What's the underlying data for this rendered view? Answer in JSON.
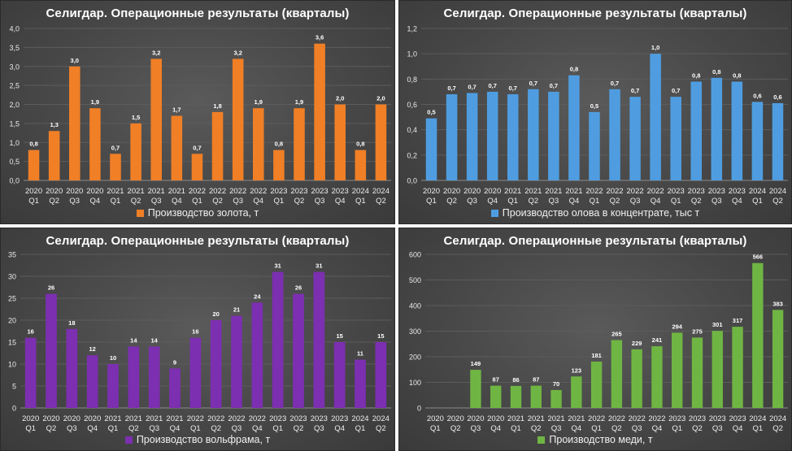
{
  "chart_data": [
    {
      "type": "bar",
      "title": "Селигдар. Операционные результаты (кварталы)",
      "categories": [
        [
          "2020",
          "Q1"
        ],
        [
          "2020",
          "Q2"
        ],
        [
          "2020",
          "Q3"
        ],
        [
          "2020",
          "Q4"
        ],
        [
          "2021",
          "Q1"
        ],
        [
          "2021",
          "Q2"
        ],
        [
          "2021",
          "Q3"
        ],
        [
          "2021",
          "Q4"
        ],
        [
          "2022",
          "Q1"
        ],
        [
          "2022",
          "Q2"
        ],
        [
          "2022",
          "Q3"
        ],
        [
          "2022",
          "Q4"
        ],
        [
          "2023",
          "Q1"
        ],
        [
          "2023",
          "Q2"
        ],
        [
          "2023",
          "Q3"
        ],
        [
          "2023",
          "Q4"
        ],
        [
          "2024",
          "Q1"
        ],
        [
          "2024",
          "Q2"
        ]
      ],
      "series": [
        {
          "name": "Производство золота, т",
          "values": [
            0.8,
            1.3,
            3.0,
            1.9,
            0.7,
            1.5,
            3.2,
            1.7,
            0.7,
            1.8,
            3.2,
            1.9,
            0.8,
            1.9,
            3.6,
            2.0,
            0.8,
            2.0
          ]
        }
      ],
      "data_labels": [
        "0,8",
        "1,3",
        "3,0",
        "1,9",
        "0,7",
        "1,5",
        "3,2",
        "1,7",
        "0,7",
        "1,8",
        "3,2",
        "1,9",
        "0,8",
        "1,9",
        "3,6",
        "2,0",
        "0,8",
        "2,0"
      ],
      "yticks": [
        "0,0",
        "0,5",
        "1,0",
        "1,5",
        "2,0",
        "2,5",
        "3,0",
        "3,5",
        "4,0"
      ],
      "ylim": [
        0,
        4.0
      ],
      "color": "#f07f26",
      "legend_position": "bottom"
    },
    {
      "type": "bar",
      "title": "Селигдар. Операционные результаты (кварталы)",
      "categories": [
        [
          "2020",
          "Q1"
        ],
        [
          "2020",
          "Q2"
        ],
        [
          "2020",
          "Q3"
        ],
        [
          "2020",
          "Q4"
        ],
        [
          "2021",
          "Q1"
        ],
        [
          "2021",
          "Q2"
        ],
        [
          "2021",
          "Q3"
        ],
        [
          "2021",
          "Q4"
        ],
        [
          "2022",
          "Q1"
        ],
        [
          "2022",
          "Q2"
        ],
        [
          "2022",
          "Q3"
        ],
        [
          "2022",
          "Q4"
        ],
        [
          "2023",
          "Q1"
        ],
        [
          "2023",
          "Q2"
        ],
        [
          "2023",
          "Q3"
        ],
        [
          "2023",
          "Q4"
        ],
        [
          "2024",
          "Q1"
        ],
        [
          "2024",
          "Q2"
        ]
      ],
      "series": [
        {
          "name": "Производство олова в концентрате, тыс т",
          "values": [
            0.49,
            0.68,
            0.69,
            0.7,
            0.68,
            0.72,
            0.7,
            0.83,
            0.54,
            0.72,
            0.66,
            1.0,
            0.66,
            0.78,
            0.81,
            0.78,
            0.62,
            0.61
          ]
        }
      ],
      "data_labels": [
        "0,5",
        "0,7",
        "0,7",
        "0,7",
        "0,7",
        "0,7",
        "0,7",
        "0,8",
        "0,5",
        "0,7",
        "0,7",
        "1,0",
        "0,7",
        "0,8",
        "0,8",
        "0,8",
        "0,6",
        "0,6"
      ],
      "yticks": [
        "0,0",
        "0,2",
        "0,4",
        "0,6",
        "0,8",
        "1,0",
        "1,2"
      ],
      "ylim": [
        0,
        1.2
      ],
      "color": "#4f9de0",
      "legend_position": "bottom"
    },
    {
      "type": "bar",
      "title": "Селигдар. Операционные результаты (кварталы)",
      "categories": [
        [
          "2020",
          "Q1"
        ],
        [
          "2020",
          "Q2"
        ],
        [
          "2020",
          "Q3"
        ],
        [
          "2020",
          "Q4"
        ],
        [
          "2021",
          "Q1"
        ],
        [
          "2021",
          "Q2"
        ],
        [
          "2021",
          "Q3"
        ],
        [
          "2021",
          "Q4"
        ],
        [
          "2022",
          "Q1"
        ],
        [
          "2022",
          "Q2"
        ],
        [
          "2022",
          "Q3"
        ],
        [
          "2022",
          "Q4"
        ],
        [
          "2023",
          "Q1"
        ],
        [
          "2023",
          "Q2"
        ],
        [
          "2023",
          "Q3"
        ],
        [
          "2023",
          "Q4"
        ],
        [
          "2024",
          "Q1"
        ],
        [
          "2024",
          "Q2"
        ]
      ],
      "series": [
        {
          "name": "Производство вольфрама, т",
          "values": [
            16,
            26,
            18,
            12,
            10,
            14,
            14,
            9,
            16,
            20,
            21,
            24,
            31,
            26,
            31,
            15,
            11,
            15
          ]
        }
      ],
      "data_labels": [
        "16",
        "26",
        "18",
        "12",
        "10",
        "14",
        "14",
        "9",
        "16",
        "20",
        "21",
        "24",
        "31",
        "26",
        "31",
        "15",
        "11",
        "15"
      ],
      "yticks": [
        "0",
        "5",
        "10",
        "15",
        "20",
        "25",
        "30",
        "35"
      ],
      "ylim": [
        0,
        35
      ],
      "color": "#7c2fb0",
      "legend_position": "bottom"
    },
    {
      "type": "bar",
      "title": "Селигдар. Операционные результаты (кварталы)",
      "categories": [
        [
          "2020",
          "Q1"
        ],
        [
          "2020",
          "Q2"
        ],
        [
          "2020",
          "Q3"
        ],
        [
          "2020",
          "Q4"
        ],
        [
          "2021",
          "Q1"
        ],
        [
          "2021",
          "Q2"
        ],
        [
          "2021",
          "Q3"
        ],
        [
          "2021",
          "Q4"
        ],
        [
          "2022",
          "Q1"
        ],
        [
          "2022",
          "Q2"
        ],
        [
          "2022",
          "Q3"
        ],
        [
          "2022",
          "Q4"
        ],
        [
          "2023",
          "Q1"
        ],
        [
          "2023",
          "Q2"
        ],
        [
          "2023",
          "Q3"
        ],
        [
          "2023",
          "Q4"
        ],
        [
          "2024",
          "Q1"
        ],
        [
          "2024",
          "Q2"
        ]
      ],
      "series": [
        {
          "name": "Производство меди, т",
          "values": [
            0,
            0,
            149,
            87,
            86,
            87,
            70,
            123,
            181,
            265,
            229,
            241,
            294,
            275,
            301,
            317,
            566,
            383
          ]
        }
      ],
      "data_labels": [
        "",
        "",
        "149",
        "87",
        "86",
        "87",
        "70",
        "123",
        "181",
        "265",
        "229",
        "241",
        "294",
        "275",
        "301",
        "317",
        "566",
        "383"
      ],
      "yticks": [
        "0",
        "100",
        "200",
        "300",
        "400",
        "500",
        "600"
      ],
      "ylim": [
        0,
        600
      ],
      "color": "#6fb543",
      "legend_position": "bottom"
    }
  ]
}
